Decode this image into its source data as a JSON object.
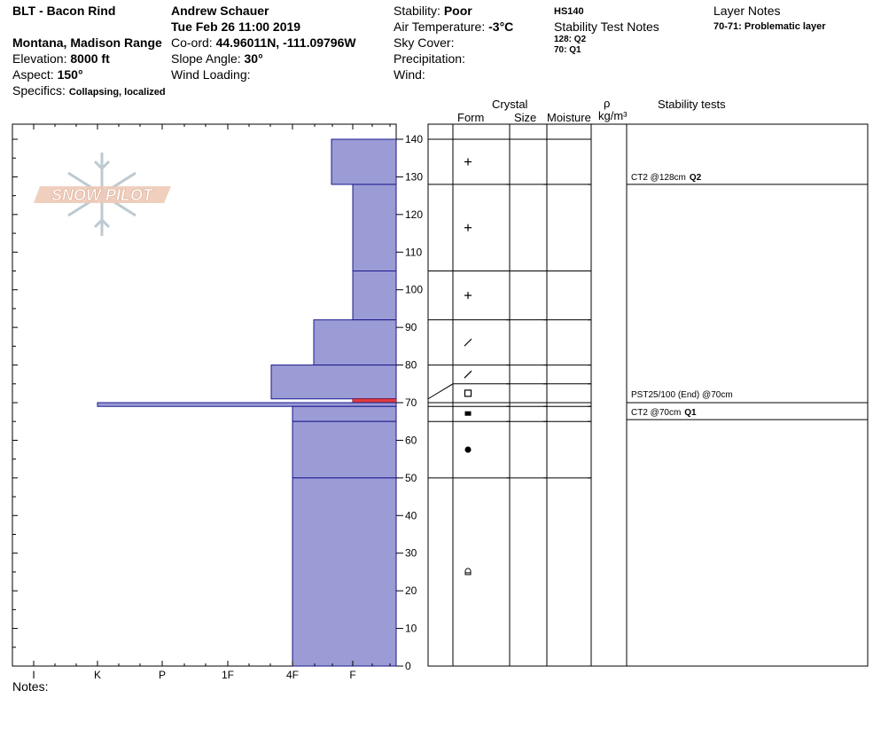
{
  "header": {
    "site": "BLT - Bacon Rind",
    "location": "Montana, Madison Range",
    "elevation_label": "Elevation:",
    "elevation_value": "8000 ft",
    "aspect_label": "Aspect:",
    "aspect_value": "150°",
    "specifics_label": "Specifics:",
    "specifics_value": "Collapsing, localized",
    "observer": "Andrew Schauer",
    "datetime": "Tue Feb 26 11:00 2019",
    "coord_label": "Co-ord:",
    "coord_value": "44.96011N, -111.09796W",
    "slope_label": "Slope Angle:",
    "slope_value": "30°",
    "wind_loading_label": "Wind Loading:",
    "stability_label": "Stability:",
    "stability_value": "Poor",
    "air_temp_label": "Air Temperature:",
    "air_temp_value": "-3°C",
    "sky_label": "Sky Cover:",
    "precip_label": "Precipitation:",
    "wind_label": "Wind:",
    "hs": "HS140",
    "stability_notes_title": "Stability Test Notes",
    "stability_notes": [
      "128: Q2",
      "70: Q1"
    ],
    "layer_notes_title": "Layer Notes",
    "layer_note_key": "70-71:",
    "layer_note_value": "Problematic layer"
  },
  "logo_text": "SNOW PILOT",
  "notes_label": "Notes:",
  "columns": {
    "crystal": "Crystal",
    "form": "Form",
    "size": "Size",
    "moisture": "Moisture",
    "rho": "ρ",
    "density_unit": "kg/m³",
    "stability_tests": "Stability tests"
  },
  "stability_tests": [
    {
      "depth": 128,
      "text": "CT2 @128cm",
      "quality": "Q2"
    },
    {
      "depth": 70,
      "text": "PST25/100 (End) @70cm",
      "quality": ""
    },
    {
      "depth": 70,
      "text": "CT2 @70cm",
      "quality": "Q1"
    }
  ],
  "chart_data": {
    "type": "bar",
    "y_unit": "cm",
    "ylim": [
      0,
      140
    ],
    "y_ticks": [
      0,
      10,
      20,
      30,
      40,
      50,
      60,
      70,
      80,
      90,
      100,
      110,
      120,
      130,
      140
    ],
    "hardness_ticks": [
      "I",
      "K",
      "P",
      "1F",
      "4F",
      "F"
    ],
    "layers": [
      {
        "bottom": 128,
        "top": 140,
        "hardness": "F+",
        "form_icon": "plus"
      },
      {
        "bottom": 105,
        "top": 128,
        "hardness": "F",
        "form_icon": "plus"
      },
      {
        "bottom": 92,
        "top": 105,
        "hardness": "F",
        "form_icon": "plus"
      },
      {
        "bottom": 80,
        "top": 92,
        "hardness": "4F-",
        "form_icon": "slash"
      },
      {
        "bottom": 71,
        "top": 80,
        "hardness": "4F+",
        "form_icon": "slash"
      },
      {
        "bottom": 70,
        "top": 71,
        "hardness": "F",
        "form_icon": "square",
        "problem": true
      },
      {
        "bottom": 69,
        "top": 70,
        "hardness": "K",
        "form_icon": "thin-layer"
      },
      {
        "bottom": 65,
        "top": 69,
        "hardness": "4F",
        "form_icon": "filled-rect"
      },
      {
        "bottom": 50,
        "top": 65,
        "hardness": "4F",
        "form_icon": "dot"
      },
      {
        "bottom": 0,
        "top": 50,
        "hardness": "4F",
        "form_icon": "melt-form"
      }
    ]
  }
}
